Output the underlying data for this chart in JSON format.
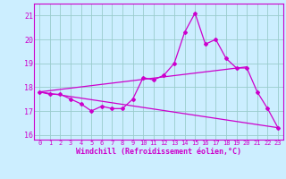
{
  "title": "",
  "xlabel": "Windchill (Refroidissement éolien,°C)",
  "bg_color": "#cceeff",
  "grid_color": "#99cccc",
  "line_color": "#cc00cc",
  "xlim": [
    -0.5,
    23.5
  ],
  "ylim": [
    15.8,
    21.5
  ],
  "yticks": [
    16,
    17,
    18,
    19,
    20,
    21
  ],
  "xticks": [
    0,
    1,
    2,
    3,
    4,
    5,
    6,
    7,
    8,
    9,
    10,
    11,
    12,
    13,
    14,
    15,
    16,
    17,
    18,
    19,
    20,
    21,
    22,
    23
  ],
  "curve1_x": [
    0,
    1,
    2,
    3,
    4,
    5,
    6,
    7,
    8,
    9,
    10,
    11,
    12,
    13,
    14,
    15,
    16,
    17,
    18,
    19,
    20,
    21,
    22,
    23
  ],
  "curve1_y": [
    17.8,
    17.7,
    17.7,
    17.5,
    17.3,
    17.0,
    17.2,
    17.1,
    17.1,
    17.5,
    18.4,
    18.3,
    18.5,
    19.0,
    20.3,
    21.1,
    19.8,
    20.0,
    19.2,
    18.8,
    18.8,
    17.8,
    17.1,
    16.3
  ],
  "curve2_x": [
    0,
    20
  ],
  "curve2_y": [
    17.8,
    18.85
  ],
  "curve3_x": [
    0,
    23
  ],
  "curve3_y": [
    17.8,
    16.3
  ]
}
